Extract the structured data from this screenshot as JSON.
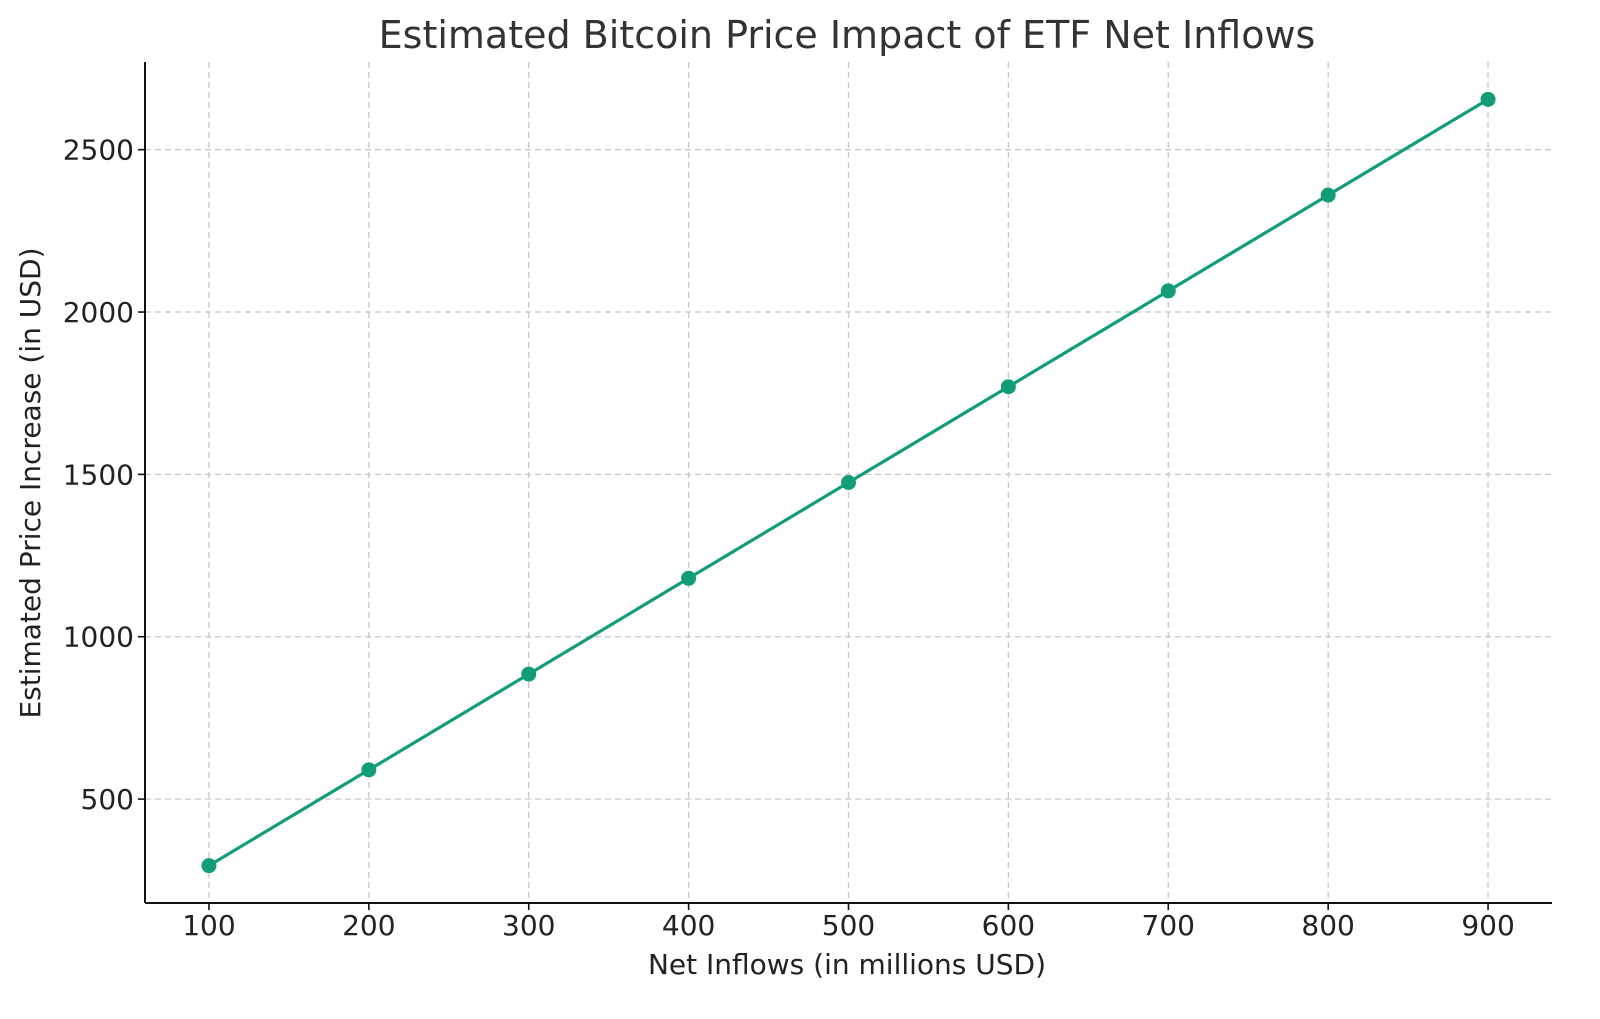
{
  "colors": {
    "series": "#129d7a",
    "grid": "#c8c8c8",
    "axis": "#111111",
    "text": "#222222"
  },
  "chart_data": {
    "type": "line",
    "title": "Estimated Bitcoin Price Impact of ETF Net Inflows",
    "xlabel": "Net Inflows (in millions USD)",
    "ylabel": "Estimated Price Increase (in USD)",
    "x": [
      100,
      200,
      300,
      400,
      500,
      600,
      700,
      800,
      900
    ],
    "series": [
      {
        "values": [
          295,
          590,
          885,
          1180,
          1475,
          1770,
          2065,
          2360,
          2655
        ],
        "marker": "circle"
      }
    ],
    "xlim": [
      60,
      940
    ],
    "ylim": [
      180,
      2770
    ],
    "xticks": [
      100,
      200,
      300,
      400,
      500,
      600,
      700,
      800,
      900
    ],
    "yticks": [
      500,
      1000,
      1500,
      2000,
      2500
    ],
    "xtick_labels": [
      "100",
      "200",
      "300",
      "400",
      "500",
      "600",
      "700",
      "800",
      "900"
    ],
    "ytick_labels": [
      "500",
      "1000",
      "1500",
      "2000",
      "2500"
    ],
    "grid": true,
    "grid_style": "dashed",
    "legend": false,
    "spines": [
      "left",
      "bottom"
    ]
  }
}
